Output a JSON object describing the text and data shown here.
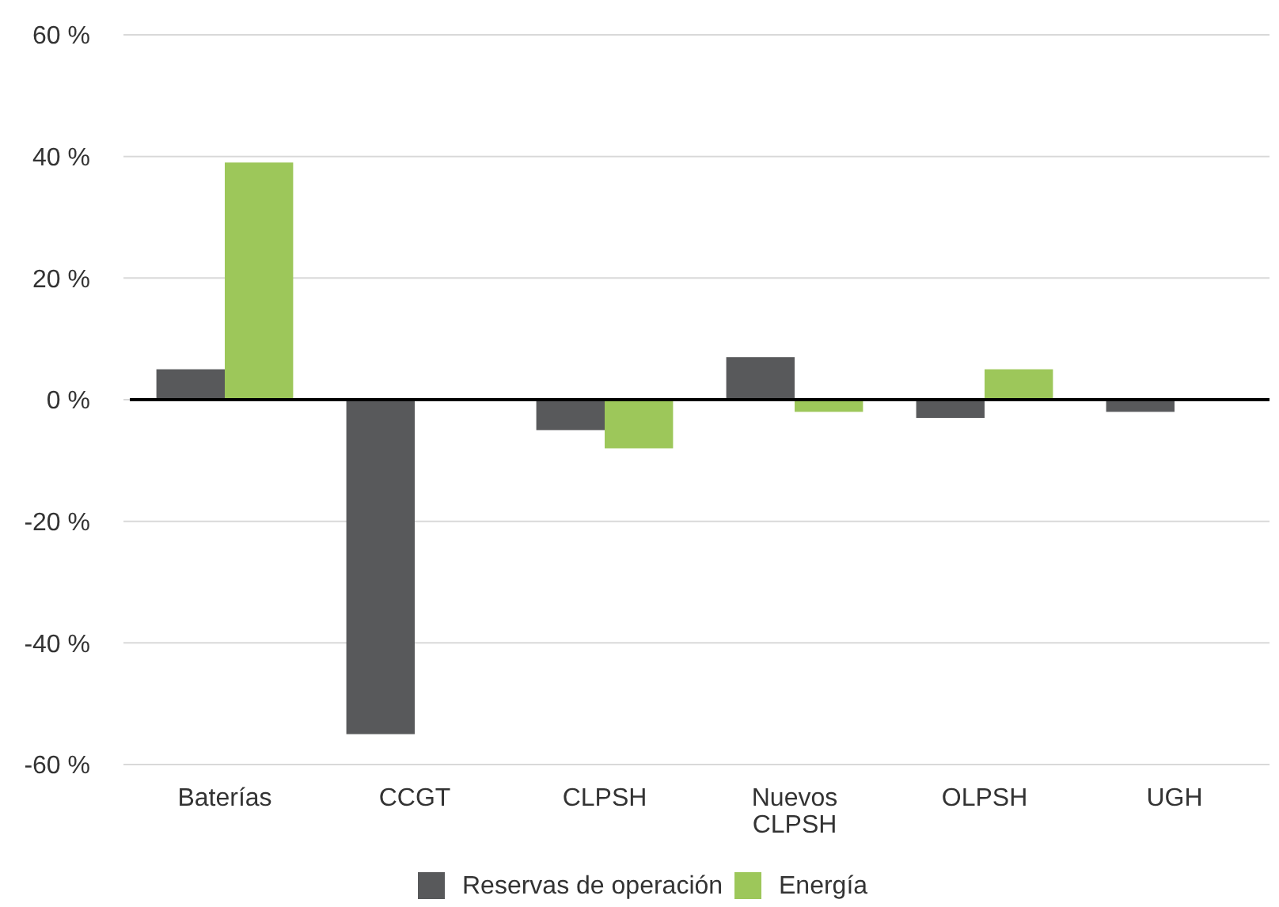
{
  "chart_data": {
    "type": "bar",
    "categories": [
      "Baterías",
      "CCGT",
      "CLPSH",
      "Nuevos CLPSH",
      "OLPSH",
      "UGH"
    ],
    "series": [
      {
        "name": "Reservas de operación",
        "color": "#58595b",
        "values": [
          5,
          -55,
          -5,
          7,
          -3,
          -2
        ]
      },
      {
        "name": "Energía",
        "color": "#9dc75a",
        "values": [
          39,
          null,
          -8,
          -2,
          5,
          null
        ]
      }
    ],
    "ylim": [
      -60,
      60
    ],
    "yticks": [
      {
        "value": -60,
        "label": "-60 %"
      },
      {
        "value": -40,
        "label": "-40 %"
      },
      {
        "value": -20,
        "label": "-20 %"
      },
      {
        "value": 0,
        "label": "0 %"
      },
      {
        "value": 20,
        "label": "20 %"
      },
      {
        "value": 40,
        "label": "40 %"
      },
      {
        "value": 60,
        "label": "60 %"
      }
    ],
    "grid": "y",
    "legend": "bottom"
  }
}
